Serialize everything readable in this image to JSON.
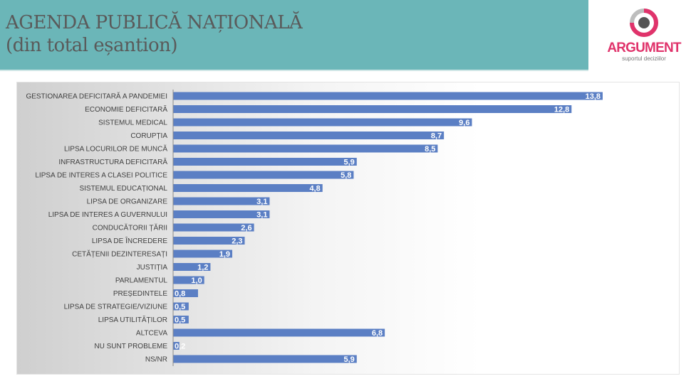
{
  "header": {
    "title_line1": "AGENDA PUBLICĂ NAȚIONALĂ",
    "title_line2": "(din total eșantion)"
  },
  "logo": {
    "name": "ARGUMENT",
    "tagline": "suportul deciziilor"
  },
  "colors": {
    "header_bg": "#6bb6b8",
    "bar": "#5b7fc4",
    "logo_accent": "#e0336b"
  },
  "chart_data": {
    "type": "bar",
    "orientation": "horizontal",
    "title": "AGENDA PUBLICĂ NAȚIONALĂ (din total eșantion)",
    "categories": [
      "GESTIONAREA DEFICITARĂ A PANDEMIEI",
      "ECONOMIE DEFICITARĂ",
      "SISTEMUL MEDICAL",
      "CORUPȚIA",
      "LIPSA LOCURILOR DE MUNCĂ",
      "INFRASTRUCTURA DEFICITARĂ",
      "LIPSA DE INTERES A CLASEI POLITICE",
      "SISTEMUL EDUCAȚIONAL",
      "LIPSA DE ORGANIZARE",
      "LIPSA DE INTERES A GUVERNULUI",
      "CONDUCĂTORII ȚĂRII",
      "LIPSA DE ÎNCREDERE",
      "CETĂȚENII DEZINTERESAȚI",
      "JUSTIȚIA",
      "PARLAMENTUL",
      "PREȘEDINTELE",
      "LIPSA DE STRATEGIE/VIZIUNE",
      "LIPSA UTILITĂȚILOR",
      "ALTCEVA",
      "NU SUNT PROBLEME",
      "NS/NR"
    ],
    "values": [
      13.8,
      12.8,
      9.6,
      8.7,
      8.5,
      5.9,
      5.8,
      4.8,
      3.1,
      3.1,
      2.6,
      2.3,
      1.9,
      1.2,
      1.0,
      0.8,
      0.5,
      0.5,
      6.8,
      0.2,
      5.9
    ],
    "labels": [
      "13,8",
      "12,8",
      "9,6",
      "8,7",
      "8,5",
      "5,9",
      "5,8",
      "4,8",
      "3,1",
      "3,1",
      "2,6",
      "2,3",
      "1,9",
      "1,2",
      "1,0",
      "0,8",
      "0,5",
      "0,5",
      "6,8",
      "0,2",
      "5,9"
    ],
    "xlim": [
      0,
      14
    ],
    "xlabel": "",
    "ylabel": "",
    "grid": false,
    "legend": "none"
  }
}
